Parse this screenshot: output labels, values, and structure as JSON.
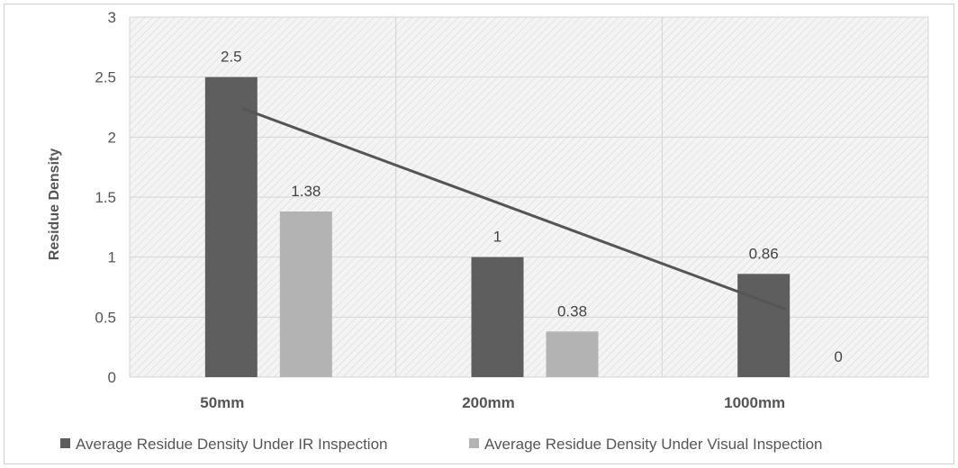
{
  "chart_data": {
    "type": "bar",
    "categories": [
      "50mm",
      "200mm",
      "1000mm"
    ],
    "series": [
      {
        "name": "Average Residue Density Under IR Inspection",
        "values": [
          2.5,
          1,
          0.86
        ],
        "labels": [
          "2.5",
          "1",
          "0.86"
        ],
        "color": "#5e5e5e"
      },
      {
        "name": "Average Residue Density Under Visual Inspection",
        "values": [
          1.38,
          0.38,
          0
        ],
        "labels": [
          "1.38",
          "0.38",
          "0"
        ],
        "color": "#b3b3b3"
      }
    ],
    "trendline": {
      "series": "Average Residue Density Under IR Inspection",
      "kind": "linear",
      "color": "#555555"
    },
    "title": "",
    "xlabel": "",
    "ylabel": "Residue Density",
    "ylim": [
      0,
      3
    ],
    "yticks": [
      "0",
      "0.5",
      "1",
      "1.5",
      "2",
      "2.5",
      "3"
    ],
    "grid": true,
    "legend_position": "bottom"
  }
}
